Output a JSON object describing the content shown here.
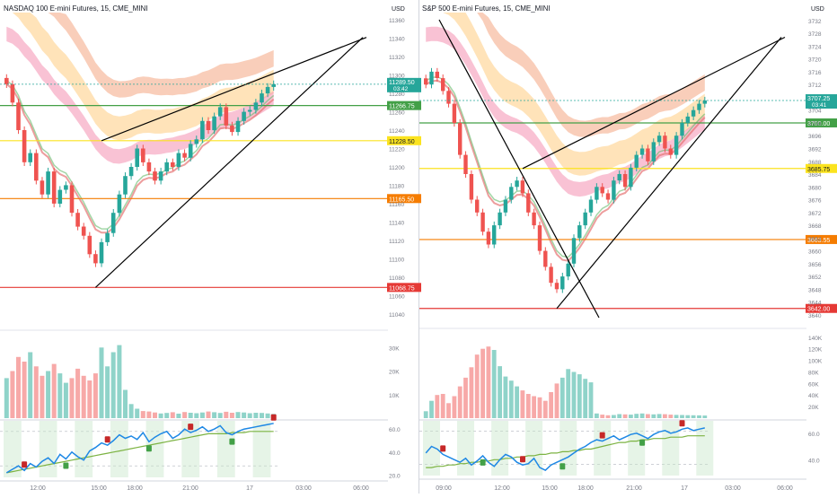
{
  "colors": {
    "up": "#26a69a",
    "down": "#ef5350",
    "green_line": "#43a047",
    "yellow_line": "#fbe31f",
    "orange_line": "#f57c00",
    "red_line": "#e53935",
    "rsi_line": "#1e88e5",
    "pink_band": "#f48fb1",
    "orange_band": "#ffcc80"
  },
  "chart_data": [
    {
      "type": "candlestick",
      "title": "NASDAQ 100 E-mini Futures, 15, CME_MINI",
      "currency": "USD",
      "x_ticks": [
        "12:00",
        "15:00",
        "18:00",
        "21:00",
        "17",
        "03:00",
        "06:00"
      ],
      "price_ticks": [
        11360,
        11340,
        11320,
        11300,
        11280,
        11260,
        11240,
        11220,
        11200,
        11180,
        11160,
        11140,
        11120,
        11100,
        11080,
        11060,
        11040
      ],
      "ylim": [
        11030,
        11368
      ],
      "levels": [
        {
          "value": 11266.75,
          "label": "11266.75",
          "color": "green"
        },
        {
          "value": 11228.5,
          "label": "11228.50",
          "color": "yellow"
        },
        {
          "value": 11165.5,
          "label": "11165.50",
          "color": "orange"
        },
        {
          "value": 11068.75,
          "label": "11068.75",
          "color": "red"
        }
      ],
      "last_price": {
        "label": "11289.50",
        "countdown": "03:42"
      },
      "closes": [
        11290,
        11270,
        11240,
        11205,
        11215,
        11185,
        11170,
        11195,
        11160,
        11175,
        11180,
        11150,
        11135,
        11125,
        11105,
        11095,
        11118,
        11128,
        11150,
        11170,
        11190,
        11200,
        11220,
        11205,
        11195,
        11185,
        11195,
        11205,
        11200,
        11215,
        11210,
        11225,
        11230,
        11250,
        11240,
        11255,
        11265,
        11245,
        11238,
        11250,
        11260,
        11262,
        11270,
        11280,
        11287,
        11290
      ],
      "volume_ticks": [
        "30K",
        "20K",
        "10K"
      ],
      "volume_max": 32000,
      "volume": [
        17000,
        20000,
        26000,
        24000,
        28000,
        22000,
        18000,
        20000,
        23000,
        19000,
        15000,
        17000,
        21000,
        18000,
        16000,
        19000,
        30000,
        22000,
        28000,
        31000,
        12000,
        6000,
        4000,
        3000,
        2800,
        2400,
        2000,
        2200,
        2500,
        1900,
        2600,
        2300,
        2100,
        2400,
        2800,
        2500,
        2200,
        2700,
        2300,
        2600,
        2400,
        2100,
        2300,
        2200,
        2000,
        1800
      ],
      "rsi_ticks": [
        "60.0",
        "40.0",
        "20.0"
      ],
      "rsi_ylim": [
        18,
        68
      ],
      "rsi": [
        22,
        25,
        28,
        24,
        30,
        27,
        32,
        35,
        30,
        38,
        34,
        40,
        36,
        33,
        41,
        44,
        48,
        46,
        50,
        55,
        52,
        54,
        51,
        57,
        49,
        53,
        56,
        58,
        52,
        55,
        60,
        57,
        59,
        62,
        58,
        60,
        63,
        57,
        55,
        58,
        60,
        61,
        62,
        63,
        64,
        65
      ],
      "rsi_ma": [
        22,
        23,
        24,
        25,
        26,
        27,
        28,
        29,
        30,
        31,
        32,
        33,
        34,
        35,
        36,
        37,
        38,
        39,
        40,
        41,
        42,
        43,
        44,
        45,
        46,
        47,
        48,
        49,
        50,
        51,
        52,
        53,
        54,
        55,
        56,
        56,
        56,
        56,
        57,
        57,
        57,
        58,
        58,
        58,
        58,
        58
      ]
    },
    {
      "type": "candlestick",
      "title": "S&P 500 E-mini Futures, 15, CME_MINI",
      "currency": "USD",
      "x_ticks": [
        "09:00",
        "12:00",
        "15:00",
        "18:00",
        "21:00",
        "17",
        "03:00",
        "06:00"
      ],
      "price_ticks": [
        3732,
        3728,
        3724,
        3720,
        3716,
        3712,
        3708,
        3704,
        3700,
        3696,
        3692,
        3688,
        3684,
        3680,
        3676,
        3672,
        3668,
        3664,
        3660,
        3656,
        3652,
        3648,
        3644,
        3640
      ],
      "ylim": [
        3638,
        3734.5
      ],
      "levels": [
        {
          "value": 3700.0,
          "label": "3700.00",
          "color": "green"
        },
        {
          "value": 3685.75,
          "label": "3685.75",
          "color": "yellow"
        },
        {
          "value": 3663.55,
          "label": "3663.55",
          "color": "orange"
        },
        {
          "value": 3642.0,
          "label": "3642.00",
          "color": "red"
        }
      ],
      "last_price": {
        "label": "3707.25",
        "countdown": "03:41"
      },
      "closes": [
        3712,
        3716,
        3714,
        3710,
        3706,
        3700,
        3690,
        3684,
        3676,
        3672,
        3666,
        3662,
        3668,
        3672,
        3676,
        3680,
        3682,
        3678,
        3672,
        3668,
        3660,
        3655,
        3650,
        3648,
        3652,
        3656,
        3664,
        3668,
        3672,
        3676,
        3680,
        3678,
        3676,
        3682,
        3684,
        3680,
        3686,
        3690,
        3692,
        3688,
        3694,
        3696,
        3692,
        3690,
        3696,
        3700,
        3702,
        3704,
        3706,
        3707
      ],
      "volume_ticks": [
        "140K",
        "120K",
        "100K",
        "80K",
        "60K",
        "40K",
        "20K"
      ],
      "volume_max": 146000,
      "volume": [
        12000,
        30000,
        40000,
        42000,
        26000,
        38000,
        55000,
        70000,
        88000,
        110000,
        120000,
        124000,
        118000,
        90000,
        72000,
        65000,
        55000,
        48000,
        42000,
        38000,
        36000,
        30000,
        45000,
        60000,
        70000,
        85000,
        80000,
        76000,
        68000,
        62000,
        8000,
        6000,
        5000,
        5500,
        7000,
        6500,
        6000,
        7500,
        8000,
        7000,
        6500,
        7200,
        6800,
        6000,
        5600,
        5400,
        5200,
        5000,
        4800,
        4500
      ],
      "rsi_ticks": [
        "60.0",
        "40.0"
      ],
      "rsi_ylim": [
        28,
        70
      ],
      "rsi": [
        45,
        50,
        48,
        44,
        42,
        40,
        38,
        41,
        36,
        39,
        43,
        38,
        35,
        40,
        44,
        42,
        38,
        36,
        37,
        41,
        34,
        32,
        36,
        38,
        40,
        42,
        45,
        48,
        50,
        53,
        55,
        54,
        56,
        58,
        55,
        57,
        59,
        60,
        58,
        56,
        59,
        61,
        62,
        60,
        61,
        63,
        64,
        62,
        63,
        64
      ],
      "rsi_ma": [
        34,
        34,
        35,
        35,
        36,
        36,
        37,
        37,
        38,
        38,
        39,
        39,
        40,
        40,
        41,
        41,
        42,
        42,
        43,
        43,
        44,
        44,
        45,
        45,
        46,
        46,
        47,
        47,
        48,
        48,
        49,
        50,
        51,
        52,
        53,
        53,
        54,
        54,
        55,
        55,
        56,
        56,
        56,
        57,
        57,
        57,
        58,
        58,
        58,
        58
      ]
    }
  ]
}
